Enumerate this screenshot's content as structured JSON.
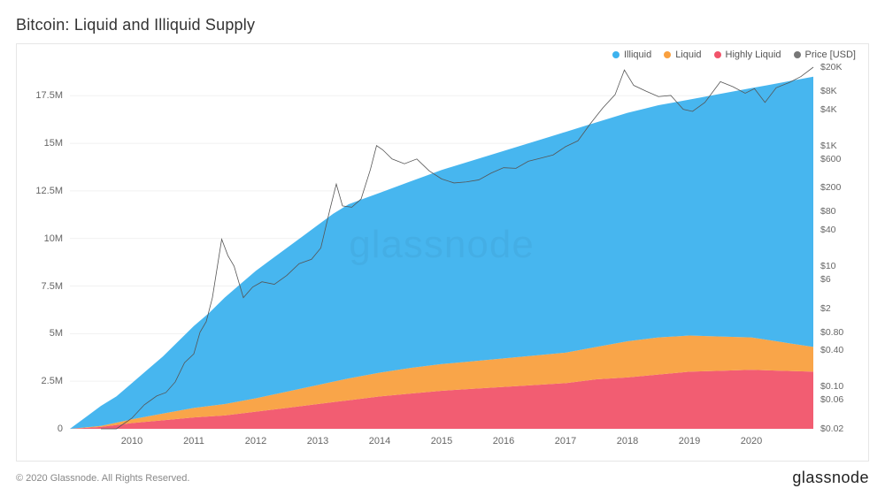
{
  "title": "Bitcoin: Liquid and Illiquid Supply",
  "copyright": "© 2020 Glassnode. All Rights Reserved.",
  "brand": "glassnode",
  "watermark": "glassnode",
  "chart": {
    "type": "stacked-area+line",
    "background_color": "#ffffff",
    "border_color": "#e6e6e6",
    "grid_color": "#f1f1f1",
    "x": {
      "domain_years": [
        2009.0,
        2021.0
      ],
      "tick_years": [
        2010,
        2011,
        2012,
        2013,
        2014,
        2015,
        2016,
        2017,
        2018,
        2019,
        2020
      ]
    },
    "y_left": {
      "domain": [
        0,
        19000000
      ],
      "ticks": [
        0,
        2500000,
        5000000,
        7500000,
        10000000,
        12500000,
        15000000,
        17500000
      ],
      "tick_labels": [
        "0",
        "2.5M",
        "5M",
        "7.5M",
        "10M",
        "12.5M",
        "15M",
        "17.5M"
      ],
      "label_fontsize": 11
    },
    "y_right": {
      "scale": "log",
      "domain": [
        0.02,
        20000
      ],
      "ticks": [
        0.02,
        0.06,
        0.1,
        0.4,
        0.8,
        2,
        6,
        10,
        40,
        80,
        200,
        600,
        1000,
        4000,
        8000,
        20000
      ],
      "tick_labels": [
        "$0.02",
        "$0.06",
        "$0.10",
        "$0.40",
        "$0.80",
        "$2",
        "$6",
        "$10",
        "$40",
        "$80",
        "$200",
        "$600",
        "$1K",
        "$4K",
        "$8K",
        "$20K"
      ],
      "label_fontsize": 10.5
    },
    "legend": {
      "position": "top-right",
      "items": [
        {
          "key": "illiquid",
          "label": "Illiquid",
          "color": "#3db2ee"
        },
        {
          "key": "liquid",
          "label": "Liquid",
          "color": "#f9a03f"
        },
        {
          "key": "highly_liquid",
          "label": "Highly Liquid",
          "color": "#f1546a"
        },
        {
          "key": "price",
          "label": "Price [USD]",
          "color": "#777777"
        }
      ]
    },
    "series": [
      {
        "key": "highly_liquid",
        "color": "#f1546a",
        "fill_opacity": 0.95,
        "stack_order": 0,
        "points_cumulative": [
          [
            2009.0,
            0.0
          ],
          [
            2009.5,
            0.1
          ],
          [
            2010.0,
            0.3
          ],
          [
            2010.5,
            0.45
          ],
          [
            2011.0,
            0.6
          ],
          [
            2011.5,
            0.7
          ],
          [
            2012.0,
            0.9
          ],
          [
            2012.5,
            1.1
          ],
          [
            2013.0,
            1.3
          ],
          [
            2013.5,
            1.5
          ],
          [
            2014.0,
            1.7
          ],
          [
            2014.5,
            1.85
          ],
          [
            2015.0,
            2.0
          ],
          [
            2015.5,
            2.1
          ],
          [
            2016.0,
            2.2
          ],
          [
            2016.5,
            2.3
          ],
          [
            2017.0,
            2.4
          ],
          [
            2017.5,
            2.6
          ],
          [
            2018.0,
            2.7
          ],
          [
            2018.5,
            2.85
          ],
          [
            2019.0,
            3.0
          ],
          [
            2019.5,
            3.05
          ],
          [
            2020.0,
            3.1
          ],
          [
            2020.5,
            3.05
          ],
          [
            2021.0,
            3.0
          ]
        ]
      },
      {
        "key": "liquid",
        "color": "#f9a03f",
        "fill_opacity": 0.95,
        "stack_order": 1,
        "points_cumulative": [
          [
            2009.0,
            0.0
          ],
          [
            2009.5,
            0.15
          ],
          [
            2010.0,
            0.5
          ],
          [
            2010.5,
            0.8
          ],
          [
            2011.0,
            1.1
          ],
          [
            2011.5,
            1.3
          ],
          [
            2012.0,
            1.6
          ],
          [
            2012.5,
            1.95
          ],
          [
            2013.0,
            2.3
          ],
          [
            2013.5,
            2.65
          ],
          [
            2014.0,
            2.95
          ],
          [
            2014.5,
            3.2
          ],
          [
            2015.0,
            3.4
          ],
          [
            2015.5,
            3.55
          ],
          [
            2016.0,
            3.7
          ],
          [
            2016.5,
            3.85
          ],
          [
            2017.0,
            4.0
          ],
          [
            2017.5,
            4.3
          ],
          [
            2018.0,
            4.6
          ],
          [
            2018.5,
            4.8
          ],
          [
            2019.0,
            4.9
          ],
          [
            2019.5,
            4.85
          ],
          [
            2020.0,
            4.8
          ],
          [
            2020.5,
            4.55
          ],
          [
            2021.0,
            4.3
          ]
        ]
      },
      {
        "key": "illiquid",
        "color": "#3db2ee",
        "fill_opacity": 0.95,
        "stack_order": 2,
        "points_cumulative": [
          [
            2009.0,
            0.0
          ],
          [
            2009.25,
            0.6
          ],
          [
            2009.5,
            1.2
          ],
          [
            2009.75,
            1.7
          ],
          [
            2010.0,
            2.4
          ],
          [
            2010.25,
            3.1
          ],
          [
            2010.5,
            3.8
          ],
          [
            2010.75,
            4.6
          ],
          [
            2011.0,
            5.4
          ],
          [
            2011.25,
            6.1
          ],
          [
            2011.5,
            6.9
          ],
          [
            2011.75,
            7.6
          ],
          [
            2012.0,
            8.3
          ],
          [
            2012.25,
            8.9
          ],
          [
            2012.5,
            9.5
          ],
          [
            2012.75,
            10.1
          ],
          [
            2013.0,
            10.7
          ],
          [
            2013.25,
            11.3
          ],
          [
            2013.5,
            11.8
          ],
          [
            2013.75,
            12.1
          ],
          [
            2014.0,
            12.4
          ],
          [
            2014.25,
            12.7
          ],
          [
            2014.5,
            13.0
          ],
          [
            2014.75,
            13.3
          ],
          [
            2015.0,
            13.6
          ],
          [
            2015.25,
            13.85
          ],
          [
            2015.5,
            14.1
          ],
          [
            2015.75,
            14.35
          ],
          [
            2016.0,
            14.6
          ],
          [
            2016.25,
            14.85
          ],
          [
            2016.5,
            15.1
          ],
          [
            2016.75,
            15.35
          ],
          [
            2017.0,
            15.6
          ],
          [
            2017.25,
            15.85
          ],
          [
            2017.5,
            16.1
          ],
          [
            2017.75,
            16.35
          ],
          [
            2018.0,
            16.6
          ],
          [
            2018.25,
            16.8
          ],
          [
            2018.5,
            17.0
          ],
          [
            2018.75,
            17.15
          ],
          [
            2019.0,
            17.3
          ],
          [
            2019.25,
            17.45
          ],
          [
            2019.5,
            17.6
          ],
          [
            2019.75,
            17.75
          ],
          [
            2020.0,
            17.9
          ],
          [
            2020.25,
            18.05
          ],
          [
            2020.5,
            18.2
          ],
          [
            2020.75,
            18.35
          ],
          [
            2021.0,
            18.5
          ]
        ]
      }
    ],
    "price_line": {
      "color": "#555555",
      "width": 0.8,
      "points": [
        [
          2009.5,
          0.02
        ],
        [
          2009.75,
          0.02
        ],
        [
          2010.0,
          0.03
        ],
        [
          2010.2,
          0.05
        ],
        [
          2010.4,
          0.07
        ],
        [
          2010.55,
          0.08
        ],
        [
          2010.7,
          0.12
        ],
        [
          2010.85,
          0.25
        ],
        [
          2011.0,
          0.35
        ],
        [
          2011.1,
          0.8
        ],
        [
          2011.2,
          1.2
        ],
        [
          2011.3,
          3.0
        ],
        [
          2011.45,
          28.0
        ],
        [
          2011.55,
          15.0
        ],
        [
          2011.65,
          10.0
        ],
        [
          2011.8,
          3.0
        ],
        [
          2011.95,
          4.5
        ],
        [
          2012.1,
          5.5
        ],
        [
          2012.3,
          5.0
        ],
        [
          2012.5,
          7.0
        ],
        [
          2012.7,
          11.0
        ],
        [
          2012.9,
          13.0
        ],
        [
          2013.05,
          20.0
        ],
        [
          2013.2,
          90.0
        ],
        [
          2013.3,
          230.0
        ],
        [
          2013.4,
          100.0
        ],
        [
          2013.55,
          95.0
        ],
        [
          2013.7,
          130.0
        ],
        [
          2013.85,
          400.0
        ],
        [
          2013.95,
          1000.0
        ],
        [
          2014.05,
          850.0
        ],
        [
          2014.2,
          600.0
        ],
        [
          2014.4,
          500.0
        ],
        [
          2014.6,
          600.0
        ],
        [
          2014.8,
          380.0
        ],
        [
          2015.0,
          280.0
        ],
        [
          2015.2,
          240.0
        ],
        [
          2015.4,
          250.0
        ],
        [
          2015.6,
          270.0
        ],
        [
          2015.8,
          350.0
        ],
        [
          2016.0,
          430.0
        ],
        [
          2016.2,
          420.0
        ],
        [
          2016.4,
          550.0
        ],
        [
          2016.6,
          620.0
        ],
        [
          2016.8,
          700.0
        ],
        [
          2017.0,
          960.0
        ],
        [
          2017.2,
          1200.0
        ],
        [
          2017.4,
          2300.0
        ],
        [
          2017.6,
          4200.0
        ],
        [
          2017.8,
          7000.0
        ],
        [
          2017.95,
          18000.0
        ],
        [
          2018.1,
          10000.0
        ],
        [
          2018.3,
          8000.0
        ],
        [
          2018.5,
          6500.0
        ],
        [
          2018.7,
          6800.0
        ],
        [
          2018.9,
          4000.0
        ],
        [
          2019.05,
          3700.0
        ],
        [
          2019.25,
          5200.0
        ],
        [
          2019.5,
          11500.0
        ],
        [
          2019.7,
          9500.0
        ],
        [
          2019.9,
          7400.0
        ],
        [
          2020.05,
          8800.0
        ],
        [
          2020.22,
          5200.0
        ],
        [
          2020.4,
          9100.0
        ],
        [
          2020.6,
          11000.0
        ],
        [
          2020.8,
          14000.0
        ],
        [
          2021.0,
          20000.0
        ]
      ]
    }
  }
}
